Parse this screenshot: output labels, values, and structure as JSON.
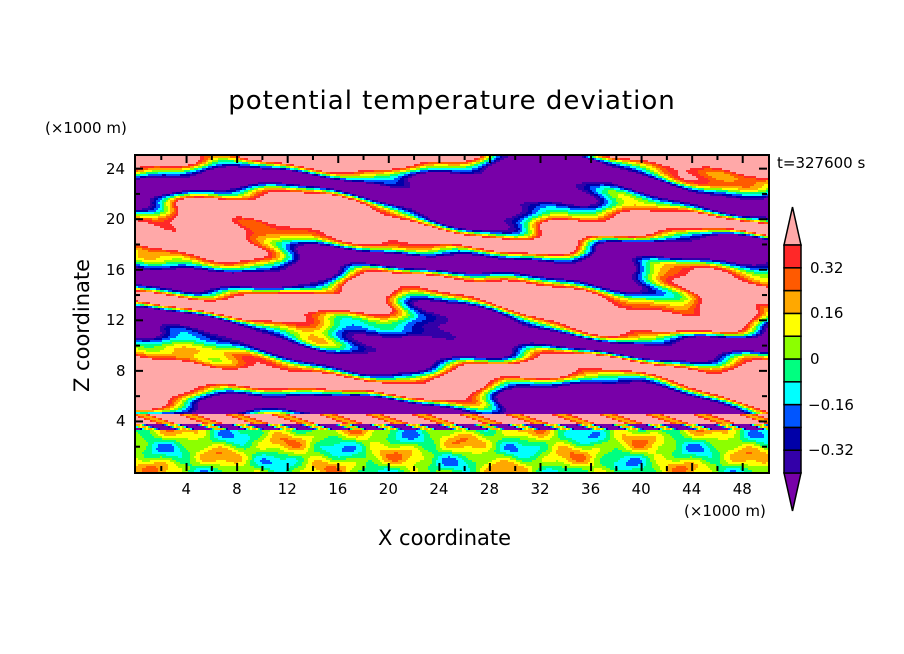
{
  "chart_data": {
    "type": "heatmap",
    "title": "potential temperature deviation",
    "xlabel": "X coordinate",
    "ylabel": "Z coordinate",
    "x_unit_label": "(×1000 m)",
    "y_unit_label": "(×1000 m)",
    "annotation": "t=327600 s",
    "xlim": [
      0,
      50
    ],
    "ylim": [
      0,
      25
    ],
    "xticks": [
      4,
      8,
      12,
      16,
      20,
      24,
      28,
      32,
      36,
      40,
      44,
      48
    ],
    "yticks": [
      4,
      8,
      12,
      16,
      20,
      24
    ],
    "minor_tick_step": 2,
    "colorbar": {
      "levels": [
        -0.4,
        -0.32,
        -0.24,
        -0.16,
        -0.08,
        0,
        0.08,
        0.16,
        0.24,
        0.32,
        0.4
      ],
      "tick_labels": [
        "0.32",
        "0.16",
        "0",
        "−0.16",
        "−0.32"
      ],
      "tick_values": [
        0.32,
        0.16,
        0,
        -0.16,
        -0.32
      ],
      "colors": [
        "#7800a8",
        "#3300a8",
        "#0000a8",
        "#0055ff",
        "#00ffff",
        "#00ff80",
        "#8cff00",
        "#ffff00",
        "#ffa800",
        "#ff5a00",
        "#ff2828",
        "#ffa8a8"
      ],
      "extend": "both"
    }
  }
}
